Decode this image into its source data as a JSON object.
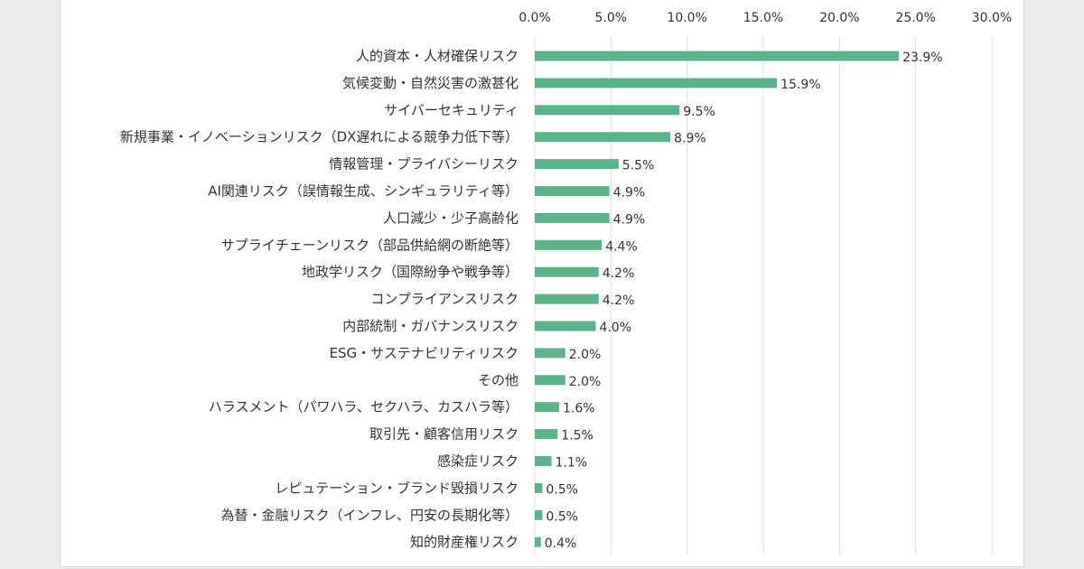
{
  "colors": {
    "bar": "#5bb48a",
    "grid": "#dcdcdc",
    "text": "#333333"
  },
  "chart_data": {
    "type": "bar",
    "orientation": "horizontal",
    "title": "",
    "xlabel": "",
    "ylabel": "",
    "xlim": [
      0,
      30
    ],
    "ticks": [
      "0.0%",
      "5.0%",
      "10.0%",
      "15.0%",
      "20.0%",
      "25.0%",
      "30.0%"
    ],
    "tick_values": [
      0,
      5,
      10,
      15,
      20,
      25,
      30
    ],
    "grid": true,
    "categories": [
      "人的資本・人材確保リスク",
      "気候変動・自然災害の激甚化",
      "サイバーセキュリティ",
      "新規事業・イノベーションリスク（DX遅れによる競争力低下等）",
      "情報管理・プライバシーリスク",
      "AI関連リスク（誤情報生成、シンギュラリティ等）",
      "人口減少・少子高齢化",
      "サプライチェーンリスク（部品供給網の断絶等）",
      "地政学リスク（国際紛争や戦争等）",
      "コンプライアンスリスク",
      "内部統制・ガバナンスリスク",
      "ESG・サステナビリティリスク",
      "その他",
      "ハラスメント（パワハラ、セクハラ、カスハラ等）",
      "取引先・顧客信用リスク",
      "感染症リスク",
      "レピュテーション・ブランド毀損リスク",
      "為替・金融リスク（インフレ、円安の長期化等）",
      "知的財産権リスク"
    ],
    "values": [
      23.9,
      15.9,
      9.5,
      8.9,
      5.5,
      4.9,
      4.9,
      4.4,
      4.2,
      4.2,
      4.0,
      2.0,
      2.0,
      1.6,
      1.5,
      1.1,
      0.5,
      0.5,
      0.4
    ],
    "value_labels": [
      "23.9%",
      "15.9%",
      "9.5%",
      "8.9%",
      "5.5%",
      "4.9%",
      "4.9%",
      "4.4%",
      "4.2%",
      "4.2%",
      "4.0%",
      "2.0%",
      "2.0%",
      "1.6%",
      "1.5%",
      "1.1%",
      "0.5%",
      "0.5%",
      "0.4%"
    ]
  }
}
